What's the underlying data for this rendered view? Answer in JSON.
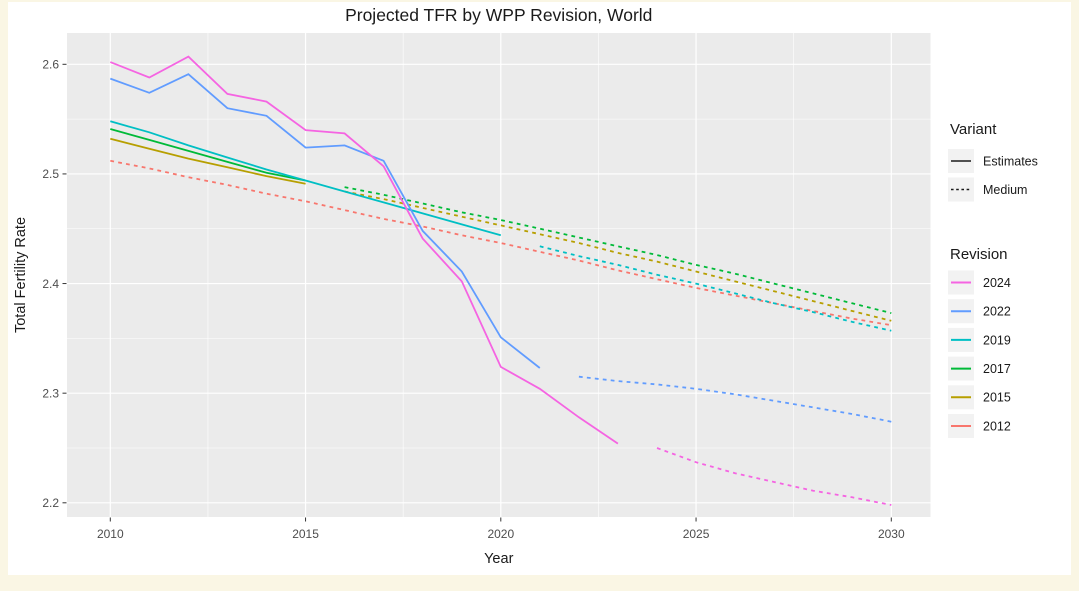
{
  "page": {
    "background_color": "#FAF6E4",
    "card_color": "#FFFFFF"
  },
  "chart_data": {
    "type": "line",
    "title": "Projected TFR by WPP Revision, World",
    "xlabel": "Year",
    "ylabel": "Total Fertility Rate",
    "x_ticks": [
      2010,
      2015,
      2020,
      2025,
      2030
    ],
    "x_tick_labels": [
      "2010",
      "2015",
      "2020",
      "2025",
      "2030"
    ],
    "y_ticks": [
      2.2,
      2.3,
      2.4,
      2.5,
      2.6
    ],
    "y_tick_labels": [
      "2.2",
      "2.3",
      "2.4",
      "2.5",
      "2.6"
    ],
    "xlim": [
      2008.9,
      2031.1
    ],
    "ylim": [
      2.187,
      2.629
    ],
    "grid": true,
    "panel_color": "#EBEBEB",
    "gridline_color": "#FFFFFF",
    "tick_color": "#333333",
    "tick_label_color": "#4D4D4D",
    "text_color": "#1A1A1A",
    "legend_position": "right",
    "legend_key_color": "#F2F2F2",
    "legend": {
      "variant_title": "Variant",
      "variant_items": [
        {
          "label": "Estimates",
          "dash": "solid",
          "color": "#1A1A1A"
        },
        {
          "label": "Medium",
          "dash": "dashed",
          "color": "#1A1A1A"
        }
      ],
      "revision_title": "Revision",
      "revision_items": [
        {
          "label": "2024",
          "color": "#F564E2"
        },
        {
          "label": "2022",
          "color": "#619CFF"
        },
        {
          "label": "2019",
          "color": "#00BFC4"
        },
        {
          "label": "2017",
          "color": "#00BA38"
        },
        {
          "label": "2015",
          "color": "#B79F00"
        },
        {
          "label": "2012",
          "color": "#F8766D"
        }
      ]
    },
    "series": [
      {
        "name": "2012-medium",
        "revision": "2012",
        "variant": "Medium",
        "color": "#F8766D",
        "dash": "dashed",
        "x": [
          2010,
          2011,
          2012,
          2013,
          2014,
          2015,
          2016,
          2017,
          2018,
          2019,
          2020,
          2021,
          2022,
          2023,
          2024,
          2025,
          2026,
          2027,
          2028,
          2029,
          2030
        ],
        "y": [
          2.512,
          2.505,
          2.497,
          2.49,
          2.482,
          2.475,
          2.467,
          2.459,
          2.452,
          2.444,
          2.437,
          2.429,
          2.421,
          2.412,
          2.404,
          2.396,
          2.389,
          2.382,
          2.375,
          2.368,
          2.362
        ]
      },
      {
        "name": "2015-estimates",
        "revision": "2015",
        "variant": "Estimates",
        "color": "#B79F00",
        "dash": "solid",
        "x": [
          2010,
          2011,
          2012,
          2013,
          2014,
          2015
        ],
        "y": [
          2.532,
          2.523,
          2.514,
          2.506,
          2.498,
          2.491
        ]
      },
      {
        "name": "2015-medium",
        "revision": "2015",
        "variant": "Medium",
        "color": "#B79F00",
        "dash": "dashed",
        "x": [
          2016,
          2017,
          2018,
          2019,
          2020,
          2021,
          2022,
          2023,
          2024,
          2025,
          2026,
          2027,
          2028,
          2029,
          2030
        ],
        "y": [
          2.484,
          2.477,
          2.469,
          2.461,
          2.453,
          2.445,
          2.437,
          2.428,
          2.42,
          2.411,
          2.402,
          2.393,
          2.384,
          2.375,
          2.366
        ]
      },
      {
        "name": "2017-estimates",
        "revision": "2017",
        "variant": "Estimates",
        "color": "#00BA38",
        "dash": "solid",
        "x": [
          2010,
          2011,
          2012,
          2013,
          2014,
          2015
        ],
        "y": [
          2.541,
          2.531,
          2.521,
          2.511,
          2.501,
          2.494
        ]
      },
      {
        "name": "2017-medium",
        "revision": "2017",
        "variant": "Medium",
        "color": "#00BA38",
        "dash": "dashed",
        "x": [
          2016,
          2017,
          2018,
          2019,
          2020,
          2021,
          2022,
          2023,
          2024,
          2025,
          2026,
          2027,
          2028,
          2029,
          2030
        ],
        "y": [
          2.488,
          2.481,
          2.473,
          2.465,
          2.458,
          2.45,
          2.442,
          2.434,
          2.426,
          2.417,
          2.409,
          2.4,
          2.391,
          2.382,
          2.373
        ]
      },
      {
        "name": "2019-estimates",
        "revision": "2019",
        "variant": "Estimates",
        "color": "#00BFC4",
        "dash": "solid",
        "x": [
          2010,
          2011,
          2012,
          2013,
          2014,
          2015,
          2016,
          2017,
          2018,
          2019,
          2020
        ],
        "y": [
          2.548,
          2.538,
          2.526,
          2.515,
          2.504,
          2.494,
          2.484,
          2.474,
          2.464,
          2.454,
          2.444
        ]
      },
      {
        "name": "2019-medium",
        "revision": "2019",
        "variant": "Medium",
        "color": "#00BFC4",
        "dash": "dashed",
        "x": [
          2021,
          2022,
          2023,
          2024,
          2025,
          2026,
          2027,
          2028,
          2029,
          2030
        ],
        "y": [
          2.434,
          2.425,
          2.417,
          2.408,
          2.4,
          2.391,
          2.382,
          2.374,
          2.365,
          2.357
        ]
      },
      {
        "name": "2022-estimates",
        "revision": "2022",
        "variant": "Estimates",
        "color": "#619CFF",
        "dash": "solid",
        "x": [
          2010,
          2011,
          2012,
          2013,
          2014,
          2015,
          2016,
          2017,
          2018,
          2019,
          2020,
          2021
        ],
        "y": [
          2.587,
          2.574,
          2.591,
          2.56,
          2.553,
          2.524,
          2.526,
          2.512,
          2.448,
          2.411,
          2.351,
          2.323
        ]
      },
      {
        "name": "2022-medium",
        "revision": "2022",
        "variant": "Medium",
        "color": "#619CFF",
        "dash": "dashed",
        "x": [
          2022,
          2023,
          2024,
          2025,
          2026,
          2027,
          2028,
          2029,
          2030
        ],
        "y": [
          2.315,
          2.311,
          2.308,
          2.304,
          2.299,
          2.293,
          2.287,
          2.281,
          2.274
        ]
      },
      {
        "name": "2024-estimates",
        "revision": "2024",
        "variant": "Estimates",
        "color": "#F564E2",
        "dash": "solid",
        "x": [
          2010,
          2011,
          2012,
          2013,
          2014,
          2015,
          2016,
          2017,
          2018,
          2019,
          2020,
          2021,
          2022,
          2023
        ],
        "y": [
          2.602,
          2.588,
          2.607,
          2.573,
          2.566,
          2.54,
          2.537,
          2.507,
          2.441,
          2.402,
          2.324,
          2.304,
          2.278,
          2.254
        ]
      },
      {
        "name": "2024-medium",
        "revision": "2024",
        "variant": "Medium",
        "color": "#F564E2",
        "dash": "dashed",
        "x": [
          2024,
          2025,
          2026,
          2027,
          2028,
          2029,
          2030
        ],
        "y": [
          2.25,
          2.237,
          2.227,
          2.219,
          2.211,
          2.205,
          2.198
        ]
      }
    ]
  }
}
